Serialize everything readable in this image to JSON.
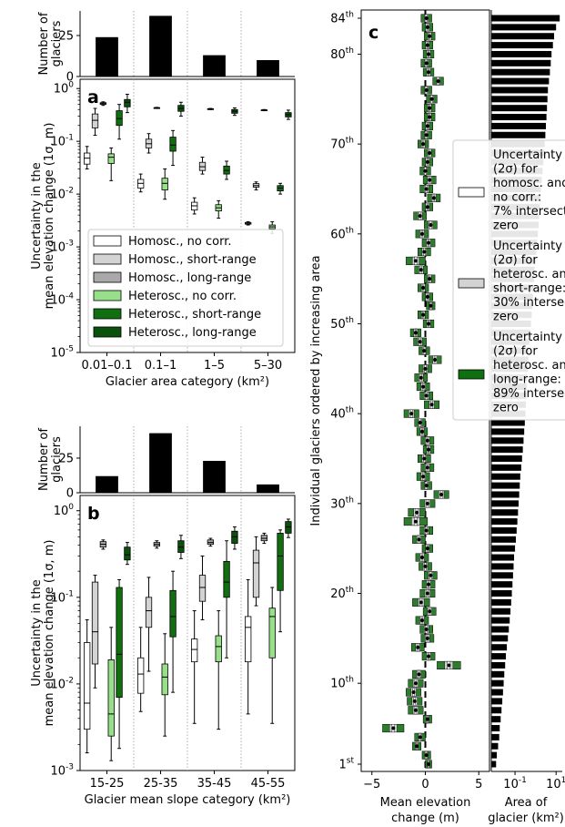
{
  "colors": {
    "homo_none": "#ffffff",
    "homo_short": "#d3d3d3",
    "homo_long": "#a9a9a9",
    "het_none": "#98df8a",
    "het_short": "#107010",
    "het_long": "#0b500b",
    "green_box": "#2e7d2e",
    "bar": "#000000"
  },
  "legend_a": [
    {
      "label": "Homosc., no corr.",
      "color_key": "homo_none"
    },
    {
      "label": "Homosc., short-range",
      "color_key": "homo_short"
    },
    {
      "label": "Homosc., long-range",
      "color_key": "homo_long"
    },
    {
      "label": "Heterosc., no corr.",
      "color_key": "het_none"
    },
    {
      "label": "Heterosc., short-range",
      "color_key": "het_short"
    },
    {
      "label": "Heterosc., long-range",
      "color_key": "het_long"
    }
  ],
  "legend_c": [
    {
      "label": "Uncertainty (2σ) for homosc. and no corr.: 7% intersect zero",
      "lines": [
        "Uncertainty",
        "(2σ) for",
        "homosc. and",
        "no corr.:",
        "7% intersect",
        "zero"
      ],
      "color_key": "homo_none"
    },
    {
      "label": "Uncertainty (2σ) for heterosc. and short-range: 30% intersect zero",
      "lines": [
        "Uncertainty",
        "(2σ) for",
        "heterosc. and",
        "short-range:",
        "30% intersect",
        "zero"
      ],
      "color_key": "homo_short"
    },
    {
      "label": "Uncertainty (2σ) for heterosc. and long-range: 89% intersect zero",
      "lines": [
        "Uncertainty",
        "(2σ) for",
        "heterosc. and",
        "long-range:",
        "89% intersect",
        "zero"
      ],
      "color_key": "het_short"
    }
  ],
  "chart_data": [
    {
      "id": "a-count",
      "type": "bar",
      "ylabel": "Number of glaciers",
      "yticks": [
        0,
        25
      ],
      "ylim": [
        0,
        40
      ],
      "categories": [
        "0.01–0.1",
        "0.1–1",
        "1–5",
        "5–30"
      ],
      "values": [
        24,
        37,
        13,
        10
      ]
    },
    {
      "id": "a",
      "type": "box",
      "panel_label": "a",
      "ylabel": "Uncertainty in the mean elevation change (1σ, m)",
      "xlabel": "Glacier area category (km²)",
      "yscale": "log",
      "ylim": [
        1e-05,
        1.5
      ],
      "ytick_labels": [
        "10^0",
        "10^-1",
        "10^-2",
        "10^-3",
        "10^-4",
        "10^-5"
      ],
      "categories": [
        "0.01–0.1",
        "0.1–1",
        "1–5",
        "5–30"
      ],
      "series": [
        {
          "name": "Homosc., no corr.",
          "boxes": [
            [
              0.03,
              0.037,
              0.048,
              0.06,
              0.08
            ],
            [
              0.011,
              0.013,
              0.016,
              0.019,
              0.024
            ],
            [
              0.0042,
              0.005,
              0.006,
              0.007,
              0.0085
            ],
            [
              0.0026,
              0.0027,
              0.0028,
              0.0029,
              0.003
            ]
          ]
        },
        {
          "name": "Homosc., short-range",
          "boxes": [
            [
              0.13,
              0.18,
              0.25,
              0.33,
              0.42
            ],
            [
              0.06,
              0.075,
              0.09,
              0.11,
              0.14
            ],
            [
              0.024,
              0.028,
              0.033,
              0.04,
              0.05
            ],
            [
              0.012,
              0.0135,
              0.0145,
              0.0158,
              0.017
            ]
          ]
        },
        {
          "name": "Homosc., long-range",
          "boxes": [
            [
              0.48,
              0.5,
              0.52,
              0.54,
              0.56
            ],
            [
              0.42,
              0.425,
              0.43,
              0.435,
              0.44
            ],
            [
              0.4,
              0.405,
              0.41,
              0.415,
              0.42
            ],
            [
              0.38,
              0.385,
              0.39,
              0.395,
              0.4
            ]
          ]
        },
        {
          "name": "Heterosc., no corr.",
          "boxes": [
            [
              0.018,
              0.038,
              0.05,
              0.058,
              0.075
            ],
            [
              0.008,
              0.012,
              0.016,
              0.02,
              0.03
            ],
            [
              0.0035,
              0.0048,
              0.0055,
              0.0063,
              0.0075
            ],
            [
              0.0018,
              0.0022,
              0.0024,
              0.0026,
              0.003
            ]
          ]
        },
        {
          "name": "Heterosc., short-range",
          "boxes": [
            [
              0.11,
              0.2,
              0.27,
              0.38,
              0.5
            ],
            [
              0.035,
              0.065,
              0.085,
              0.12,
              0.16
            ],
            [
              0.019,
              0.024,
              0.028,
              0.034,
              0.042
            ],
            [
              0.01,
              0.0115,
              0.013,
              0.0145,
              0.016
            ]
          ]
        },
        {
          "name": "Heterosc., long-range",
          "boxes": [
            [
              0.35,
              0.45,
              0.55,
              0.62,
              0.78
            ],
            [
              0.3,
              0.37,
              0.42,
              0.48,
              0.55
            ],
            [
              0.31,
              0.34,
              0.37,
              0.4,
              0.43
            ],
            [
              0.26,
              0.29,
              0.32,
              0.35,
              0.39
            ]
          ]
        }
      ]
    },
    {
      "id": "b-count",
      "type": "bar",
      "ylabel": "Number of glaciers",
      "yticks": [
        0,
        25
      ],
      "ylim": [
        0,
        48
      ],
      "categories": [
        "15-25",
        "25-35",
        "35-45",
        "45-55"
      ],
      "values": [
        12,
        43,
        23,
        6
      ]
    },
    {
      "id": "b",
      "type": "box",
      "panel_label": "b",
      "ylabel": "Uncertainty in the mean elevation change (1σ, m)",
      "xlabel": "Glacier mean slope category (km²)",
      "yscale": "log",
      "ylim": [
        0.001,
        1.5
      ],
      "ytick_labels": [
        "10^0",
        "10^-1",
        "10^-2",
        "10^-3"
      ],
      "categories": [
        "15-25",
        "25-35",
        "35-45",
        "45-55"
      ],
      "series": [
        {
          "name": "Homosc., no corr.",
          "boxes": [
            [
              0.0016,
              0.003,
              0.006,
              0.03,
              0.055
            ],
            [
              0.0048,
              0.0078,
              0.013,
              0.02,
              0.045
            ],
            [
              0.0035,
              0.018,
              0.025,
              0.033,
              0.07
            ],
            [
              0.0045,
              0.018,
              0.045,
              0.06,
              0.16
            ]
          ]
        },
        {
          "name": "Homosc., short-range",
          "boxes": [
            [
              0.009,
              0.017,
              0.04,
              0.15,
              0.18
            ],
            [
              0.014,
              0.045,
              0.07,
              0.1,
              0.17
            ],
            [
              0.055,
              0.09,
              0.13,
              0.18,
              0.3
            ],
            [
              0.08,
              0.1,
              0.25,
              0.35,
              0.5
            ]
          ]
        },
        {
          "name": "Homosc., long-range",
          "boxes": [
            [
              0.36,
              0.38,
              0.41,
              0.44,
              0.46
            ],
            [
              0.37,
              0.39,
              0.41,
              0.43,
              0.45
            ],
            [
              0.39,
              0.41,
              0.43,
              0.46,
              0.48
            ],
            [
              0.42,
              0.45,
              0.48,
              0.52,
              0.55
            ]
          ]
        },
        {
          "name": "Heterosc., no corr.",
          "boxes": [
            [
              0.0013,
              0.0025,
              0.0045,
              0.019,
              0.045
            ],
            [
              0.0025,
              0.0075,
              0.012,
              0.017,
              0.038
            ],
            [
              0.003,
              0.018,
              0.027,
              0.036,
              0.07
            ],
            [
              0.0035,
              0.02,
              0.06,
              0.075,
              0.13
            ]
          ]
        },
        {
          "name": "Heterosc., short-range",
          "boxes": [
            [
              0.0018,
              0.007,
              0.022,
              0.13,
              0.16
            ],
            [
              0.008,
              0.035,
              0.06,
              0.12,
              0.2
            ],
            [
              0.02,
              0.1,
              0.15,
              0.26,
              0.45
            ],
            [
              0.04,
              0.12,
              0.3,
              0.55,
              0.6
            ]
          ]
        },
        {
          "name": "Heterosc., long-range",
          "boxes": [
            [
              0.24,
              0.27,
              0.31,
              0.38,
              0.43
            ],
            [
              0.28,
              0.33,
              0.38,
              0.45,
              0.52
            ],
            [
              0.36,
              0.42,
              0.5,
              0.58,
              0.65
            ],
            [
              0.49,
              0.55,
              0.65,
              0.75,
              0.8
            ]
          ]
        }
      ]
    },
    {
      "id": "c",
      "type": "interval",
      "panel_label": "c",
      "ylabel": "Individual glaciers ordered by increasing area",
      "xlabel": "Mean elevation change (m)",
      "xlim": [
        -6,
        6
      ],
      "xticks": [
        -5,
        0,
        5
      ],
      "yticks": [
        {
          "rank": 1,
          "label": "1st"
        },
        {
          "rank": 10,
          "label": "10th"
        },
        {
          "rank": 20,
          "label": "20th"
        },
        {
          "rank": 30,
          "label": "30th"
        },
        {
          "rank": 40,
          "label": "40th"
        },
        {
          "rank": 50,
          "label": "50th"
        },
        {
          "rank": 60,
          "label": "60th"
        },
        {
          "rank": 70,
          "label": "70th"
        },
        {
          "rank": 80,
          "label": "80th"
        },
        {
          "rank": 84,
          "label": "84th"
        }
      ],
      "mean_dh": [
        0.3,
        0.1,
        -0.8,
        -0.5,
        -3.0,
        0.2,
        -0.9,
        -1.0,
        -1.1,
        -0.9,
        -0.6,
        2.2,
        0.3,
        -0.7,
        0.2,
        0.1,
        -0.3,
        0.4,
        -0.4,
        0.2,
        0.3,
        0.5,
        0.0,
        -0.3,
        0.2,
        -0.6,
        0.1,
        -0.9,
        -0.8,
        0.2,
        1.5,
        0.1,
        -0.2,
        0.2,
        -0.1,
        0.3,
        0.2,
        -0.3,
        -0.5,
        -1.3,
        0.6,
        0.1,
        -0.2,
        -0.4,
        0.0,
        0.9,
        -0.1,
        -0.5,
        -0.9,
        0.3,
        -0.2,
        0.5,
        0.2,
        -0.2,
        0.4,
        -0.4,
        -0.9,
        -0.1,
        0.3,
        -0.3,
        0.5,
        -0.5,
        0.2,
        0.8,
        0.1,
        0.4,
        0.0,
        0.2,
        0.4,
        -0.2,
        0.1,
        0.2,
        0.4,
        0.4,
        0.6,
        0.1,
        1.2,
        0.3,
        0.1,
        0.3,
        0.2,
        0.4,
        0.2,
        0.1
      ],
      "half_width_long_range": [
        0.3,
        0.4,
        0.4,
        0.5,
        1.0,
        0.4,
        0.7,
        0.7,
        0.7,
        0.7,
        0.6,
        1.1,
        0.6,
        0.6,
        0.6,
        0.6,
        0.6,
        0.6,
        0.8,
        0.7,
        0.6,
        0.6,
        0.6,
        0.6,
        0.5,
        0.6,
        0.6,
        1.1,
        0.8,
        0.7,
        0.7,
        0.5,
        0.6,
        0.6,
        0.6,
        0.5,
        0.6,
        0.5,
        0.5,
        0.7,
        0.7,
        0.6,
        0.6,
        0.6,
        0.6,
        0.6,
        0.5,
        0.6,
        0.5,
        0.5,
        0.5,
        0.4,
        0.5,
        0.5,
        0.5,
        0.6,
        0.9,
        0.6,
        0.6,
        0.6,
        0.6,
        0.6,
        0.5,
        0.6,
        0.6,
        0.6,
        0.5,
        0.5,
        0.5,
        0.5,
        0.5,
        0.5,
        0.5,
        0.5,
        0.5,
        0.5,
        0.5,
        0.5,
        0.5,
        0.5,
        0.5,
        0.5,
        0.5,
        0.5
      ],
      "area_xlabel": "Area of glacier (km²)",
      "area_xscale": "log",
      "area_xticks": [
        "10^-1",
        "10^1"
      ],
      "area_km2": [
        0.012,
        0.013,
        0.015,
        0.017,
        0.018,
        0.02,
        0.022,
        0.024,
        0.026,
        0.028,
        0.03,
        0.033,
        0.036,
        0.04,
        0.045,
        0.05,
        0.055,
        0.06,
        0.065,
        0.07,
        0.075,
        0.08,
        0.085,
        0.09,
        0.1,
        0.11,
        0.12,
        0.13,
        0.14,
        0.15,
        0.16,
        0.17,
        0.18,
        0.2,
        0.22,
        0.24,
        0.26,
        0.28,
        0.3,
        0.32,
        0.34,
        0.36,
        0.38,
        0.4,
        0.42,
        0.45,
        0.48,
        0.5,
        0.55,
        0.6,
        0.65,
        0.7,
        0.75,
        0.8,
        0.85,
        0.9,
        1.0,
        1.1,
        1.2,
        1.3,
        1.4,
        1.5,
        1.6,
        1.7,
        1.8,
        2.0,
        2.2,
        2.4,
        2.6,
        2.8,
        3.0,
        3.2,
        3.4,
        3.6,
        3.8,
        4.0,
        4.5,
        5.0,
        5.5,
        6.0,
        7.0,
        8.0,
        10.0,
        15.0
      ]
    }
  ]
}
